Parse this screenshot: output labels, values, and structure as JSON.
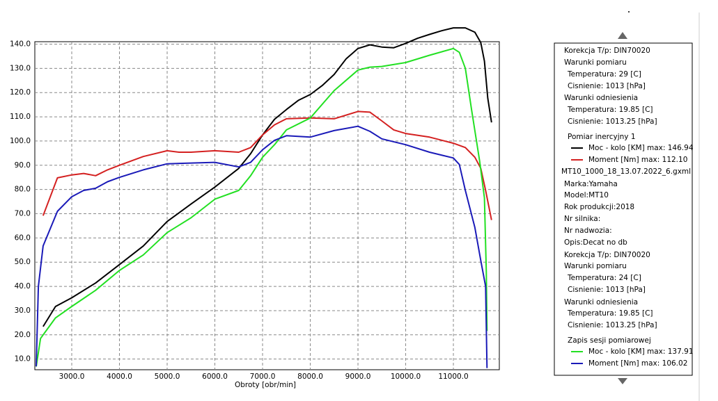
{
  "chart_data": {
    "type": "line",
    "xlabel": "Obroty [obr/min]",
    "xlim": [
      2226,
      11963
    ],
    "xticks": [
      {
        "value": 3000,
        "label": "3000.0"
      },
      {
        "value": 4000,
        "label": "4000.0"
      },
      {
        "value": 5000,
        "label": "5000.0"
      },
      {
        "value": 6000,
        "label": "6000.0"
      },
      {
        "value": 7000,
        "label": "7000.0"
      },
      {
        "value": 8000,
        "label": "8000.0"
      },
      {
        "value": 9000,
        "label": "9000.0"
      },
      {
        "value": 10000,
        "label": "10000.0"
      },
      {
        "value": 11000,
        "label": "11000.0"
      }
    ],
    "ylim": [
      5.6,
      141
    ],
    "yticks": [
      {
        "value": 10,
        "label": "10.0"
      },
      {
        "value": 20,
        "label": "20.0"
      },
      {
        "value": 30,
        "label": "30.0"
      },
      {
        "value": 40,
        "label": "40.0"
      },
      {
        "value": 50,
        "label": "50.0"
      },
      {
        "value": 60,
        "label": "60.0"
      },
      {
        "value": 70,
        "label": "70.0"
      },
      {
        "value": 80,
        "label": "80.0"
      },
      {
        "value": 90,
        "label": "90.0"
      },
      {
        "value": 100,
        "label": "100.0"
      },
      {
        "value": 110,
        "label": "110.0"
      },
      {
        "value": 120,
        "label": "120.0"
      },
      {
        "value": 130,
        "label": "130.0"
      },
      {
        "value": 140,
        "label": "140.0"
      }
    ],
    "grid": true,
    "series": [
      {
        "name": "Moc - kolo [KM] max: 146.94",
        "color": "#000000",
        "x": [
          2400,
          2660,
          3000,
          3500,
          4000,
          4500,
          5000,
          5500,
          6000,
          6500,
          6750,
          7000,
          7250,
          7500,
          7750,
          8000,
          8250,
          8500,
          8750,
          9000,
          9250,
          9500,
          9750,
          10000,
          10250,
          10500,
          10750,
          11000,
          11250,
          11450,
          11575,
          11650,
          11720,
          11800
        ],
        "values": [
          23.4,
          31.7,
          35.3,
          41.4,
          49,
          56.7,
          66.8,
          74,
          81,
          88.7,
          94.8,
          102.5,
          109,
          113,
          116.8,
          119.2,
          122.9,
          127.5,
          133.9,
          138.2,
          139.7,
          138.8,
          138.5,
          140.3,
          142.4,
          144,
          145.5,
          146.7,
          146.7,
          144.9,
          140.6,
          133,
          117.7,
          107.7
        ]
      },
      {
        "name": "Moment [Nm] max: 112.10",
        "color": "#d42020",
        "x": [
          2400,
          2700,
          3000,
          3250,
          3500,
          3750,
          4000,
          4500,
          5000,
          5250,
          5500,
          6000,
          6500,
          6750,
          7000,
          7250,
          7500,
          8000,
          8500,
          9000,
          9250,
          9500,
          9750,
          10000,
          10500,
          11000,
          11250,
          11450,
          11575,
          11675,
          11800
        ],
        "values": [
          69.2,
          84.8,
          86,
          86.6,
          85.7,
          88.1,
          90,
          93.6,
          96,
          95.4,
          95.4,
          96,
          95.4,
          97.3,
          102.5,
          106.7,
          109.2,
          109.5,
          109.2,
          112.2,
          111.9,
          108.3,
          104.6,
          103.1,
          101.6,
          99.1,
          97.3,
          93.3,
          88.7,
          79.6,
          67.4
        ]
      },
      {
        "name": "Moc - kolo [KM] max: 137.91",
        "color": "#22e022",
        "x": [
          2255,
          2345,
          2660,
          3000,
          3500,
          4000,
          4500,
          5000,
          5500,
          6000,
          6500,
          6750,
          7000,
          7250,
          7500,
          8000,
          8500,
          9000,
          9250,
          9500,
          10000,
          10500,
          11000,
          11125,
          11250,
          11380,
          11550,
          11650,
          11690,
          11705
        ],
        "values": [
          6.9,
          18.5,
          27,
          31.7,
          38.4,
          46.6,
          53,
          62.2,
          68.3,
          76,
          79.6,
          85.7,
          93.3,
          98.5,
          104.6,
          109.5,
          120.8,
          129.3,
          130.5,
          130.8,
          132.4,
          135.4,
          138.2,
          136.6,
          130,
          113,
          91.8,
          76.5,
          46,
          21.6
        ]
      },
      {
        "name": "Moment [Nm] max: 106.02",
        "color": "#1a1ab8",
        "x": [
          2255,
          2300,
          2400,
          2700,
          3000,
          3250,
          3500,
          3750,
          4000,
          4500,
          5000,
          5500,
          6000,
          6500,
          6750,
          7000,
          7250,
          7500,
          8000,
          8500,
          9000,
          9250,
          9500,
          10000,
          10500,
          11000,
          11125,
          11250,
          11450,
          11575,
          11675,
          11705
        ],
        "values": [
          7,
          40,
          56.7,
          71,
          77,
          79.6,
          80.5,
          83.2,
          85,
          88.1,
          90.6,
          90.9,
          91.2,
          89.3,
          91.2,
          96.4,
          100.3,
          102.2,
          101.6,
          104.3,
          106.1,
          104,
          100.9,
          98.5,
          95.4,
          93,
          90.3,
          79.6,
          64.3,
          50.6,
          40,
          6.3
        ]
      }
    ]
  },
  "panel": {
    "run1": [
      "Korekcja T/p: DIN70020",
      "Warunki pomiaru",
      "Temperatura: 29 [C]",
      "Cisnienie: 1013 [hPa]",
      "Warunki odniesienia",
      "Temperatura: 19.85 [C]",
      "Cisnienie: 1013.25 [hPa]",
      "Pomiar inercyjny 1"
    ],
    "file": "MT10_1000_18_13.07.2022_6.gxml",
    "run2": [
      "Marka:Yamaha",
      "Model:MT10",
      "Rok produkcji:2018",
      "Nr silnika:",
      "Nr nadwozia:",
      "Opis:Decat no db",
      "Korekcja T/p: DIN70020",
      "Warunki pomiaru",
      "Temperatura: 24 [C]",
      "Cisnienie: 1013 [hPa]",
      "Warunki odniesienia",
      "Temperatura: 19.85 [C]",
      "Cisnienie: 1013.25 [hPa]",
      "Zapis sesji pomiarowej"
    ]
  }
}
